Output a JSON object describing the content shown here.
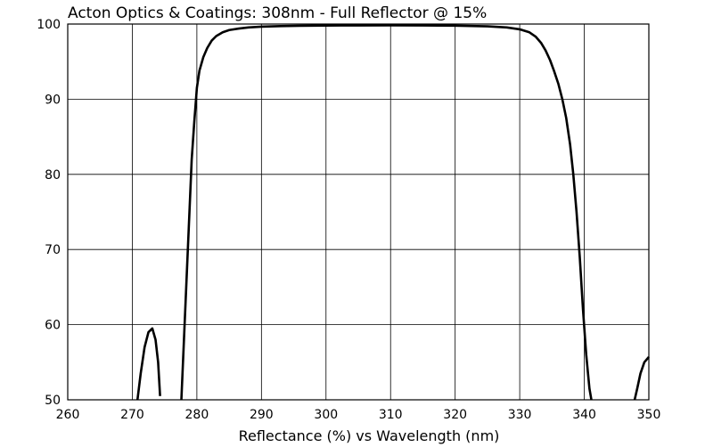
{
  "chart_data": {
    "type": "line",
    "title": "Acton Optics & Coatings:  308nm - Full Reflector @ 15%",
    "xlabel": "Reflectance (%)  vs  Wavelength (nm)",
    "ylabel": "",
    "xlim": [
      260,
      350
    ],
    "ylim": [
      50,
      100
    ],
    "xticks": [
      260,
      270,
      280,
      290,
      300,
      310,
      320,
      330,
      340,
      350
    ],
    "yticks": [
      50,
      60,
      70,
      80,
      90,
      100
    ],
    "grid": true,
    "legend": "none",
    "line_color": "#000000",
    "series": [
      {
        "segments": [
          {
            "x": [
              270.8,
              271.3,
              271.9,
              272.5,
              273.1,
              273.6,
              274.0,
              274.3
            ],
            "y": [
              50.0,
              53.5,
              57.0,
              59.0,
              59.5,
              58.0,
              55.0,
              50.5
            ]
          },
          {
            "x": [
              277.6,
              278.0,
              278.4,
              278.8,
              279.2,
              279.6,
              280.0,
              280.4,
              281.0,
              281.6,
              282.3,
              283.0,
              284.0,
              285.0,
              286.5,
              288.0,
              290.0,
              293.0,
              296.0,
              300.0,
              305.0,
              310.0,
              315.0,
              320.0,
              325.0,
              328.0,
              330.0,
              331.5,
              332.5,
              333.3,
              334.0,
              334.7,
              335.3,
              336.0,
              336.6,
              337.2,
              337.8,
              338.3,
              338.8,
              339.3,
              339.8,
              340.3,
              340.8,
              341.1
            ],
            "y": [
              50.0,
              58.0,
              66.0,
              74.0,
              82.0,
              87.0,
              91.5,
              93.8,
              95.6,
              96.8,
              97.8,
              98.4,
              98.9,
              99.2,
              99.4,
              99.55,
              99.65,
              99.72,
              99.77,
              99.8,
              99.82,
              99.83,
              99.82,
              99.78,
              99.7,
              99.55,
              99.3,
              98.9,
              98.3,
              97.5,
              96.5,
              95.2,
              93.8,
              92.0,
              90.0,
              87.5,
              84.0,
              80.0,
              75.0,
              69.0,
              62.0,
              56.0,
              51.5,
              50.0
            ]
          },
          {
            "x": [
              347.8,
              348.2,
              348.7,
              349.3,
              350.0
            ],
            "y": [
              50.0,
              51.5,
              53.5,
              55.0,
              55.7
            ]
          }
        ]
      }
    ]
  }
}
